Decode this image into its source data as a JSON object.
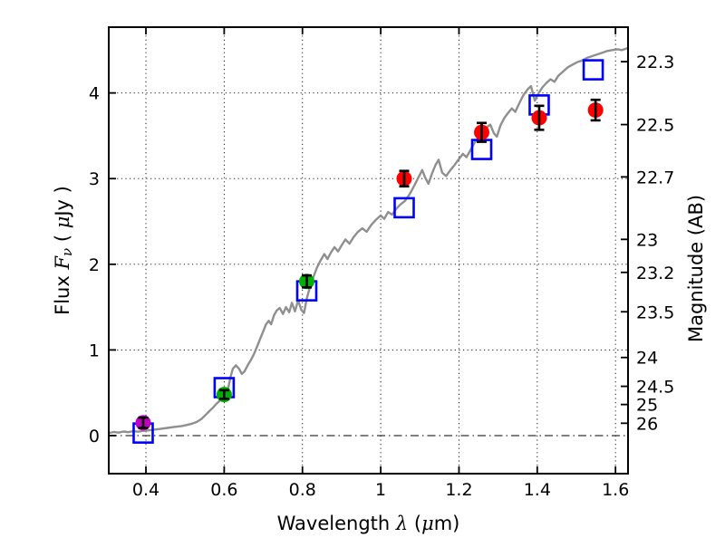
{
  "chart_data": {
    "type": "scatter",
    "description": "Galaxy spectral energy distribution: flux vs wavelength with model spectrum, model photometry (open squares) and observed photometry (filled circles with error bars)",
    "title": "",
    "xlabel_parts": [
      {
        "t": "Wavelength  ",
        "it": false
      },
      {
        "t": "λ",
        "it": true
      },
      {
        "t": " (",
        "it": false
      },
      {
        "t": "μ",
        "it": true
      },
      {
        "t": "m)",
        "it": false
      }
    ],
    "ylabel_left_parts": [
      {
        "t": "Flux  ",
        "it": false
      },
      {
        "t": "F",
        "it": true
      },
      {
        "t": "ν",
        "it": true,
        "sub": true
      },
      {
        "t": "  ( ",
        "it": false
      },
      {
        "t": "μ",
        "it": true
      },
      {
        "t": "Jy )",
        "it": false
      }
    ],
    "ylabel_right_parts": [
      {
        "t": "Magnitude (AB)",
        "it": false
      }
    ],
    "xlim": [
      0.305,
      1.632
    ],
    "ylim": [
      -0.444,
      4.768
    ],
    "x_ticks": [
      0.4,
      0.6,
      0.8,
      1.0,
      1.2,
      1.4,
      1.6
    ],
    "x_tick_labels": [
      "0.4",
      "0.6",
      "0.8",
      "1",
      "1.2",
      "1.4",
      "1.6"
    ],
    "y_ticks_left": [
      0,
      1,
      2,
      3,
      4
    ],
    "y_tick_labels_left": [
      "0",
      "1",
      "2",
      "3",
      "4"
    ],
    "y_ticks_right_mag": [
      22.3,
      22.5,
      22.7,
      23,
      23.2,
      23.5,
      24,
      24.5,
      25,
      26
    ],
    "y_tick_labels_right": [
      "22.3",
      "22.5",
      "22.7",
      "23",
      "23.2",
      "23.5",
      "24",
      "24.5",
      "25",
      "26"
    ],
    "mag_zeropoint_ujy": 23.9,
    "grid": {
      "major_dotted": true,
      "zero_line_dashdot": true,
      "legend": "none"
    },
    "colors": {
      "spectrum": "#8f8f8f",
      "model_square": "#0000ff",
      "uv_point": "#bf00bf",
      "optical_point": "#00ae00",
      "ir_point": "#ff0000",
      "error_bar": "#000000",
      "frame": "#000000"
    },
    "marker_style": {
      "circle_radius": 8.5,
      "square_size": 21,
      "square_stroke": 2.6,
      "errorbar_cap": 11,
      "errorbar_width": 2.6,
      "spectrum_width": 2.4
    },
    "observed_photometry": [
      {
        "x": 0.393,
        "y": 0.15,
        "yerr": 0.06,
        "band_color": "uv_point"
      },
      {
        "x": 0.6,
        "y": 0.48,
        "yerr": 0.05,
        "band_color": "optical_point"
      },
      {
        "x": 0.811,
        "y": 1.8,
        "yerr": 0.07,
        "band_color": "optical_point"
      },
      {
        "x": 1.06,
        "y": 3.0,
        "yerr": 0.09,
        "band_color": "ir_point"
      },
      {
        "x": 1.258,
        "y": 3.54,
        "yerr": 0.11,
        "band_color": "ir_point"
      },
      {
        "x": 1.405,
        "y": 3.71,
        "yerr": 0.14,
        "band_color": "ir_point"
      },
      {
        "x": 1.549,
        "y": 3.8,
        "yerr": 0.12,
        "band_color": "ir_point"
      }
    ],
    "model_photometry": [
      {
        "x": 0.393,
        "y": 0.03
      },
      {
        "x": 0.6,
        "y": 0.56
      },
      {
        "x": 0.811,
        "y": 1.69
      },
      {
        "x": 1.06,
        "y": 2.66
      },
      {
        "x": 1.258,
        "y": 3.34
      },
      {
        "x": 1.405,
        "y": 3.86
      },
      {
        "x": 1.543,
        "y": 4.27
      }
    ],
    "model_spectrum": [
      [
        0.305,
        0.03
      ],
      [
        0.318,
        0.042
      ],
      [
        0.33,
        0.035
      ],
      [
        0.342,
        0.048
      ],
      [
        0.355,
        0.04
      ],
      [
        0.368,
        0.052
      ],
      [
        0.38,
        0.045
      ],
      [
        0.392,
        0.055
      ],
      [
        0.405,
        0.06
      ],
      [
        0.418,
        0.068
      ],
      [
        0.43,
        0.075
      ],
      [
        0.443,
        0.082
      ],
      [
        0.455,
        0.09
      ],
      [
        0.468,
        0.098
      ],
      [
        0.48,
        0.105
      ],
      [
        0.492,
        0.112
      ],
      [
        0.505,
        0.125
      ],
      [
        0.518,
        0.14
      ],
      [
        0.53,
        0.16
      ],
      [
        0.542,
        0.195
      ],
      [
        0.552,
        0.24
      ],
      [
        0.562,
        0.285
      ],
      [
        0.572,
        0.33
      ],
      [
        0.58,
        0.37
      ],
      [
        0.588,
        0.405
      ],
      [
        0.596,
        0.44
      ],
      [
        0.604,
        0.48
      ],
      [
        0.61,
        0.55
      ],
      [
        0.616,
        0.68
      ],
      [
        0.622,
        0.78
      ],
      [
        0.63,
        0.82
      ],
      [
        0.638,
        0.78
      ],
      [
        0.645,
        0.72
      ],
      [
        0.652,
        0.75
      ],
      [
        0.66,
        0.82
      ],
      [
        0.668,
        0.88
      ],
      [
        0.676,
        0.95
      ],
      [
        0.684,
        1.04
      ],
      [
        0.692,
        1.13
      ],
      [
        0.7,
        1.22
      ],
      [
        0.707,
        1.3
      ],
      [
        0.714,
        1.34
      ],
      [
        0.72,
        1.3
      ],
      [
        0.727,
        1.4
      ],
      [
        0.734,
        1.46
      ],
      [
        0.742,
        1.49
      ],
      [
        0.75,
        1.42
      ],
      [
        0.758,
        1.5
      ],
      [
        0.766,
        1.44
      ],
      [
        0.773,
        1.55
      ],
      [
        0.781,
        1.45
      ],
      [
        0.789,
        1.58
      ],
      [
        0.797,
        1.47
      ],
      [
        0.804,
        1.43
      ],
      [
        0.811,
        1.6
      ],
      [
        0.819,
        1.73
      ],
      [
        0.828,
        1.85
      ],
      [
        0.837,
        1.96
      ],
      [
        0.847,
        2.05
      ],
      [
        0.856,
        2.12
      ],
      [
        0.864,
        2.06
      ],
      [
        0.873,
        2.14
      ],
      [
        0.882,
        2.2
      ],
      [
        0.891,
        2.15
      ],
      [
        0.9,
        2.22
      ],
      [
        0.91,
        2.29
      ],
      [
        0.92,
        2.24
      ],
      [
        0.931,
        2.32
      ],
      [
        0.942,
        2.38
      ],
      [
        0.953,
        2.42
      ],
      [
        0.964,
        2.38
      ],
      [
        0.976,
        2.46
      ],
      [
        0.988,
        2.52
      ],
      [
        1.0,
        2.57
      ],
      [
        1.009,
        2.53
      ],
      [
        1.019,
        2.61
      ],
      [
        1.029,
        2.58
      ],
      [
        1.04,
        2.65
      ],
      [
        1.051,
        2.7
      ],
      [
        1.062,
        2.74
      ],
      [
        1.074,
        2.82
      ],
      [
        1.086,
        2.92
      ],
      [
        1.097,
        3.02
      ],
      [
        1.106,
        3.1
      ],
      [
        1.114,
        3.01
      ],
      [
        1.122,
        2.94
      ],
      [
        1.131,
        3.06
      ],
      [
        1.14,
        3.16
      ],
      [
        1.148,
        3.22
      ],
      [
        1.157,
        3.07
      ],
      [
        1.167,
        3.03
      ],
      [
        1.178,
        3.1
      ],
      [
        1.189,
        3.16
      ],
      [
        1.2,
        3.23
      ],
      [
        1.21,
        3.29
      ],
      [
        1.219,
        3.25
      ],
      [
        1.229,
        3.33
      ],
      [
        1.24,
        3.42
      ],
      [
        1.251,
        3.49
      ],
      [
        1.261,
        3.55
      ],
      [
        1.271,
        3.6
      ],
      [
        1.28,
        3.63
      ],
      [
        1.289,
        3.53
      ],
      [
        1.297,
        3.49
      ],
      [
        1.306,
        3.62
      ],
      [
        1.316,
        3.71
      ],
      [
        1.326,
        3.77
      ],
      [
        1.335,
        3.82
      ],
      [
        1.344,
        3.78
      ],
      [
        1.354,
        3.88
      ],
      [
        1.364,
        3.97
      ],
      [
        1.375,
        4.04
      ],
      [
        1.384,
        4.08
      ],
      [
        1.394,
        3.91
      ],
      [
        1.404,
        4.0
      ],
      [
        1.414,
        4.07
      ],
      [
        1.424,
        4.12
      ],
      [
        1.434,
        4.16
      ],
      [
        1.444,
        4.13
      ],
      [
        1.454,
        4.2
      ],
      [
        1.466,
        4.25
      ],
      [
        1.478,
        4.3
      ],
      [
        1.49,
        4.33
      ],
      [
        1.502,
        4.36
      ],
      [
        1.515,
        4.38
      ],
      [
        1.527,
        4.41
      ],
      [
        1.54,
        4.43
      ],
      [
        1.553,
        4.45
      ],
      [
        1.566,
        4.47
      ],
      [
        1.579,
        4.49
      ],
      [
        1.592,
        4.5
      ],
      [
        1.605,
        4.51
      ],
      [
        1.616,
        4.5
      ],
      [
        1.632,
        4.525
      ]
    ]
  }
}
